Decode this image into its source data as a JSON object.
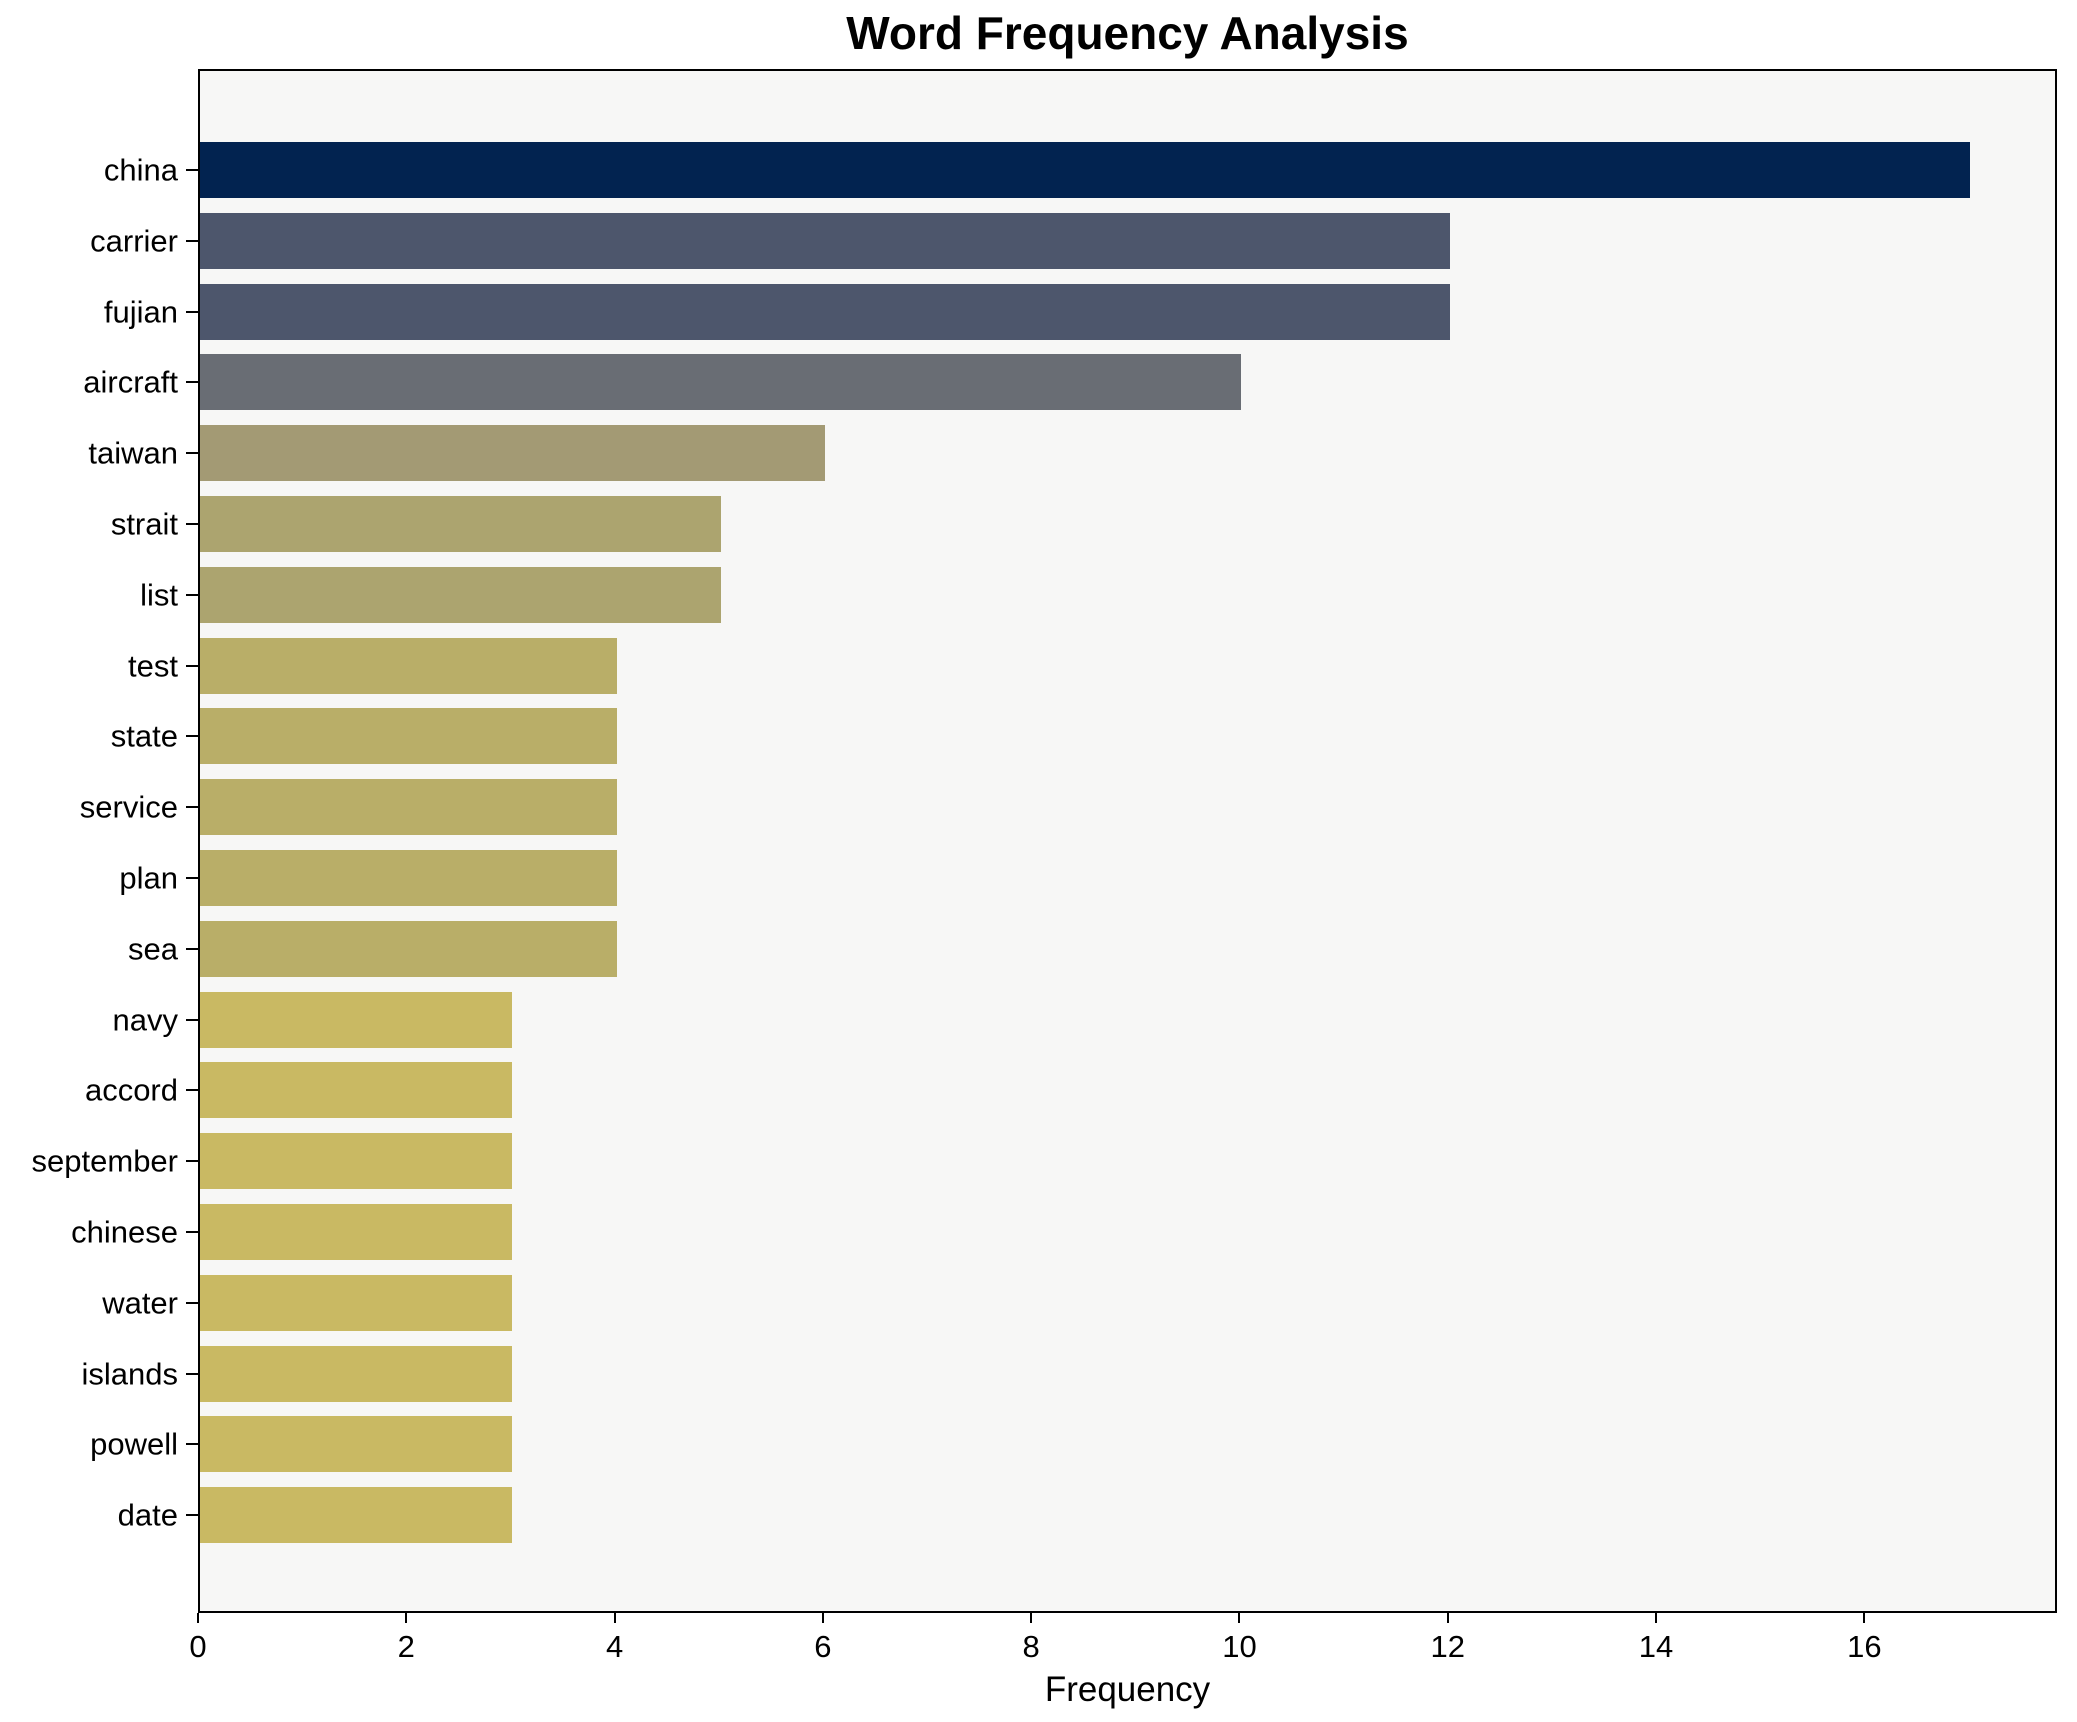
{
  "chart_data": {
    "type": "bar",
    "orientation": "horizontal",
    "title": "Word Frequency Analysis",
    "xlabel": "Frequency",
    "ylabel": "",
    "xlim": [
      0,
      17.85
    ],
    "xticks": [
      0,
      2,
      4,
      6,
      8,
      10,
      12,
      14,
      16
    ],
    "grid": false,
    "legend": "none",
    "plot_background": "#f7f7f6",
    "figure_background": "#ffffff",
    "spine_color": "#000000",
    "categories": [
      "china",
      "carrier",
      "fujian",
      "aircraft",
      "taiwan",
      "strait",
      "list",
      "test",
      "state",
      "service",
      "plan",
      "sea",
      "navy",
      "accord",
      "september",
      "chinese",
      "water",
      "islands",
      "powell",
      "date"
    ],
    "values": [
      17,
      12,
      12,
      10,
      6,
      5,
      5,
      4,
      4,
      4,
      4,
      4,
      3,
      3,
      3,
      3,
      3,
      3,
      3,
      3
    ],
    "bar_colors": [
      "#022350",
      "#4d566c",
      "#4d566c",
      "#696d74",
      "#a39a74",
      "#aca46f",
      "#aca46f",
      "#b9ae68",
      "#b9ae68",
      "#b9ae68",
      "#b9ae68",
      "#b9ae68",
      "#c9b963",
      "#c9b963",
      "#c9b963",
      "#c9b963",
      "#c9b963",
      "#c9b963",
      "#c9b963",
      "#c9b963"
    ]
  }
}
